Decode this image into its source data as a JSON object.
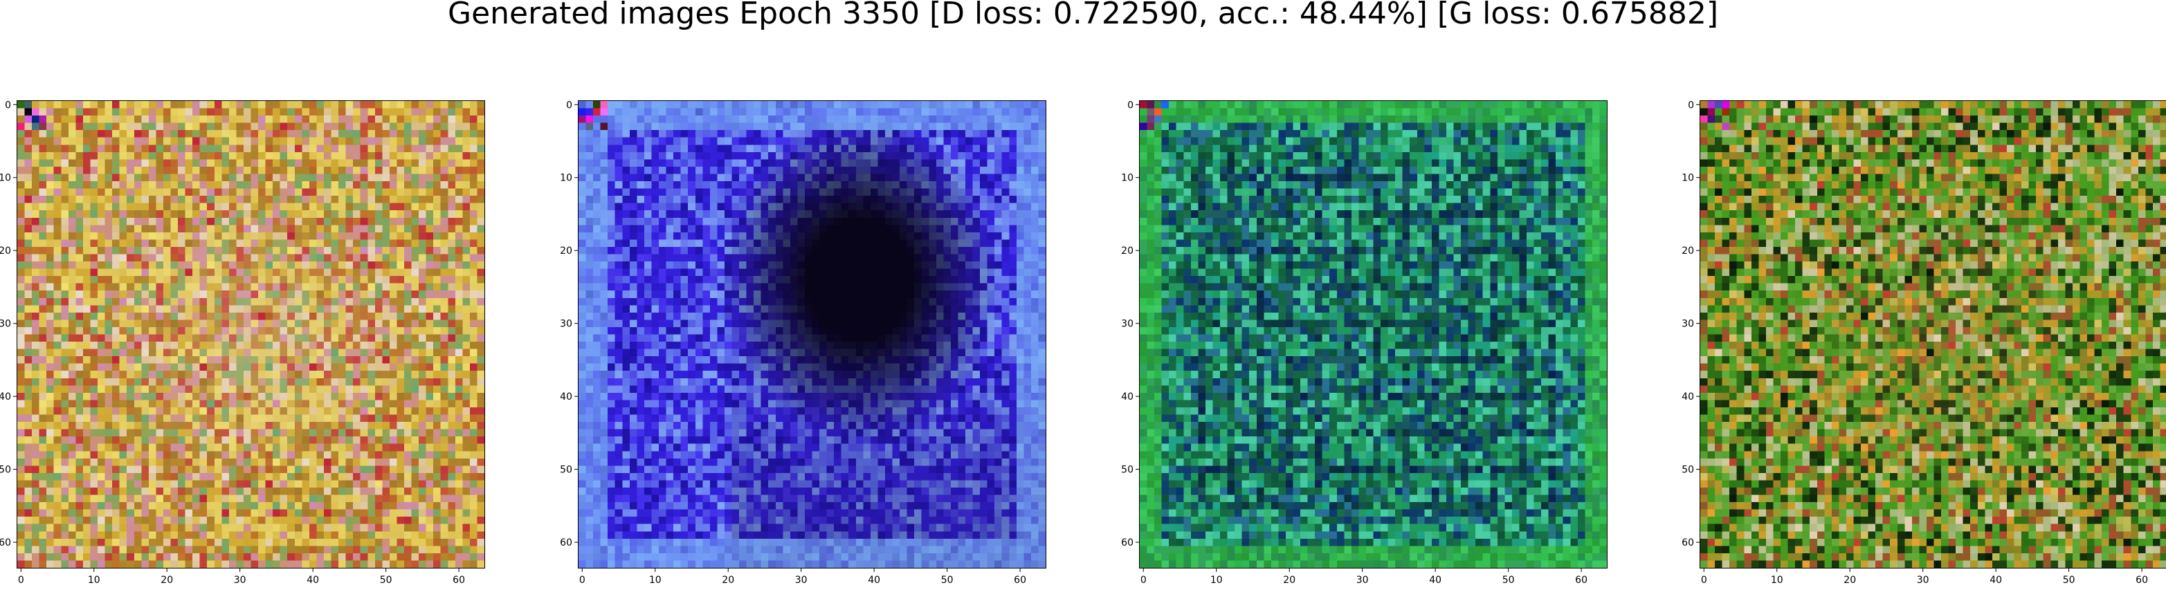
{
  "figure": {
    "title": "Generated images Epoch 3350 [D loss: 0.722590, acc.: 48.44%] [G loss: 0.675882]"
  },
  "panels": [
    {
      "name": "generated-image-1",
      "ticks": {
        "x": [
          0,
          10,
          20,
          30,
          40,
          50,
          60
        ],
        "y": [
          0,
          10,
          20,
          30,
          40,
          50,
          60
        ]
      },
      "extent": [
        -0.5,
        63.5
      ],
      "palette": {
        "base": "#c99a2a",
        "colors": [
          "#d4b13a",
          "#e8d870",
          "#b9602a",
          "#c0283a",
          "#e9d9c9",
          "#6ea86e",
          "#d08ab0",
          "#a57a2a",
          "#f0e070"
        ],
        "center_tint": "#e6cfc0"
      }
    },
    {
      "name": "generated-image-2",
      "ticks": {
        "x": [
          0,
          10,
          20,
          30,
          40,
          50,
          60
        ],
        "y": [
          0,
          10,
          20,
          30,
          40,
          50,
          60
        ]
      },
      "extent": [
        -0.5,
        63.5
      ],
      "palette": {
        "base": "#3a1ee0",
        "colors": [
          "#2a18c8",
          "#4a3af0",
          "#5a6ae8",
          "#1a10a0",
          "#6a8af0",
          "#8ab8f8",
          "#3020d8"
        ],
        "dark_blob": "#08041a",
        "border": "#7ab0f8"
      }
    },
    {
      "name": "generated-image-3",
      "ticks": {
        "x": [
          0,
          10,
          20,
          30,
          40,
          50,
          60
        ],
        "y": [
          0,
          10,
          20,
          30,
          40,
          50,
          60
        ]
      },
      "extent": [
        -0.5,
        63.5
      ],
      "palette": {
        "base": "#1e8a5a",
        "colors": [
          "#20a060",
          "#1ea890",
          "#0a4a30",
          "#3ac080",
          "#2a6aa0",
          "#0a2a70",
          "#50d8b0",
          "#126040"
        ],
        "border": "#38c838"
      }
    },
    {
      "name": "generated-image-4",
      "ticks": {
        "x": [
          0,
          10,
          20,
          30,
          40,
          50,
          60
        ],
        "y": [
          0,
          10,
          20,
          30,
          40,
          50,
          60
        ]
      },
      "extent": [
        -0.5,
        63.5
      ],
      "palette": {
        "base": "#3a8a1a",
        "colors": [
          "#4aa020",
          "#2a6a12",
          "#b0802a",
          "#d8c060",
          "#c04030",
          "#e0d0b0",
          "#0a1a08",
          "#6ab040",
          "#e8a030"
        ],
        "center_tint": "#b88a40"
      }
    }
  ]
}
